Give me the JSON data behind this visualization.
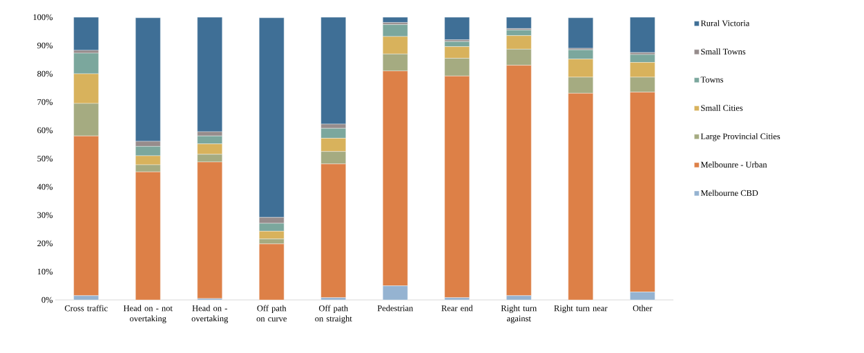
{
  "chart_data": {
    "type": "bar",
    "stacked": true,
    "categories": [
      "Cross traffic",
      "Head on - not overtaking",
      "Head on - overtaking",
      "Off path on curve",
      "Off path on straight",
      "Pedestrian",
      "Rear end",
      "Right turn against",
      "Right turn near",
      "Other"
    ],
    "series": [
      {
        "name": "Melbourne CBD",
        "color": "#95b3d1",
        "values": [
          1.5,
          null,
          0.5,
          null,
          0.8,
          5,
          0.8,
          1.5,
          null,
          2.8
        ]
      },
      {
        "name": "Melbounre - Urban",
        "color": "#dd8047",
        "values": [
          56.5,
          45.3,
          48.3,
          19.8,
          47.3,
          76,
          78.4,
          81.5,
          73.1,
          70.7
        ]
      },
      {
        "name": "Large Provincial Cities",
        "color": "#a5ab81",
        "values": [
          11.5,
          2.5,
          2.7,
          1.8,
          4.4,
          6,
          6.3,
          5.7,
          5.7,
          5.3
        ]
      },
      {
        "name": "Small Cities",
        "color": "#d8b25c",
        "values": [
          10.5,
          3.2,
          3.7,
          2.7,
          4.7,
          6.2,
          4.1,
          4.8,
          6.4,
          5.2
        ]
      },
      {
        "name": "Towns",
        "color": "#7ba79d",
        "values": [
          7.3,
          3.3,
          2.8,
          2.8,
          3.5,
          4.2,
          1.8,
          2,
          3.3,
          2.8
        ]
      },
      {
        "name": "Small Towns",
        "color": "#968c8c",
        "values": [
          1,
          1.8,
          1.5,
          2.1,
          1.5,
          0.7,
          0.6,
          0.5,
          0.5,
          0.7
        ]
      },
      {
        "name": "Rural Victoria",
        "color": "#3f6f96",
        "values": [
          11.7,
          43.7,
          40.5,
          70.6,
          37.8,
          1.9,
          8,
          4,
          10.8,
          12.5
        ]
      }
    ],
    "ylim": [
      0,
      100
    ],
    "yticks": [
      {
        "value": 0,
        "label": "0%"
      },
      {
        "value": 10,
        "label": "10%"
      },
      {
        "value": 20,
        "label": "20%"
      },
      {
        "value": 30,
        "label": "30%"
      },
      {
        "value": 40,
        "label": "40%"
      },
      {
        "value": 50,
        "label": "50%"
      },
      {
        "value": 60,
        "label": "60%"
      },
      {
        "value": 70,
        "label": "70%"
      },
      {
        "value": 80,
        "label": "80%"
      },
      {
        "value": 90,
        "label": "90%"
      },
      {
        "value": 100,
        "label": "100%"
      }
    ],
    "legend": "right"
  }
}
